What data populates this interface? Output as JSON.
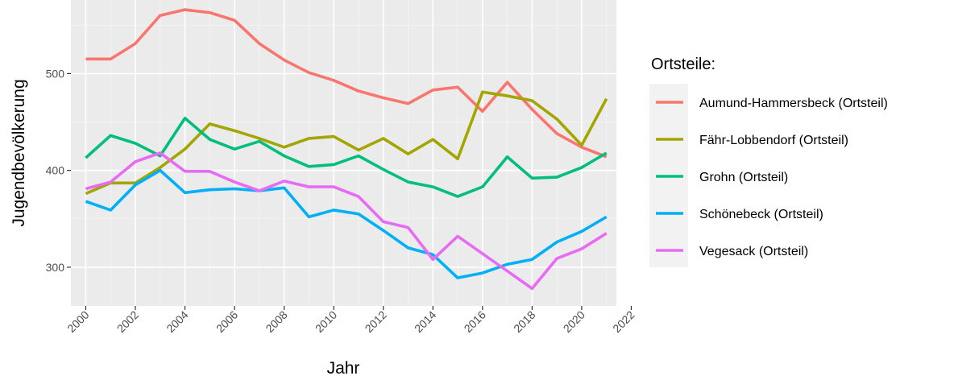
{
  "chart_data": {
    "type": "line",
    "title": "",
    "xlabel": "Jahr",
    "ylabel": "Jugendbevölkerung",
    "xlim": [
      1999.4,
      2021.4
    ],
    "ylim": [
      260,
      576
    ],
    "x_ticks": [
      2000,
      2002,
      2004,
      2006,
      2008,
      2010,
      2012,
      2014,
      2016,
      2018,
      2020,
      2022
    ],
    "y_ticks": [
      300,
      400,
      500
    ],
    "grid": true,
    "legend": {
      "title": "Ortsteile:",
      "placement": "right"
    },
    "x": [
      2000,
      2001,
      2002,
      2003,
      2004,
      2005,
      2006,
      2007,
      2008,
      2009,
      2010,
      2011,
      2012,
      2013,
      2014,
      2015,
      2016,
      2017,
      2018,
      2019,
      2020,
      2021
    ],
    "series": [
      {
        "name": "Aumund-Hammersbeck (Ortsteil)",
        "color": "#F8766D",
        "values": [
          515,
          515,
          531,
          560,
          566,
          563,
          555,
          531,
          514,
          501,
          493,
          482,
          475,
          469,
          483,
          486,
          461,
          491,
          463,
          438,
          424,
          414
        ]
      },
      {
        "name": "Fähr-Lobbendorf (Ortsteil)",
        "color": "#A3A500",
        "values": [
          376,
          387,
          387,
          403,
          422,
          448,
          441,
          433,
          424,
          433,
          435,
          421,
          433,
          417,
          432,
          412,
          481,
          477,
          472,
          453,
          426,
          474
        ]
      },
      {
        "name": "Grohn (Ortsteil)",
        "color": "#00BF7D",
        "values": [
          413,
          436,
          428,
          415,
          454,
          432,
          422,
          430,
          415,
          404,
          406,
          415,
          401,
          388,
          383,
          373,
          383,
          414,
          392,
          393,
          403,
          418
        ]
      },
      {
        "name": "Schönebeck (Ortsteil)",
        "color": "#00B0F6",
        "values": [
          368,
          359,
          385,
          400,
          377,
          380,
          381,
          379,
          382,
          352,
          359,
          355,
          338,
          320,
          313,
          289,
          294,
          303,
          308,
          326,
          337,
          352
        ]
      },
      {
        "name": "Vegesack (Ortsteil)",
        "color": "#E76BF3",
        "values": [
          381,
          388,
          409,
          418,
          399,
          399,
          388,
          379,
          389,
          383,
          383,
          373,
          347,
          341,
          308,
          332,
          314,
          296,
          278,
          309,
          319,
          335
        ]
      }
    ]
  }
}
